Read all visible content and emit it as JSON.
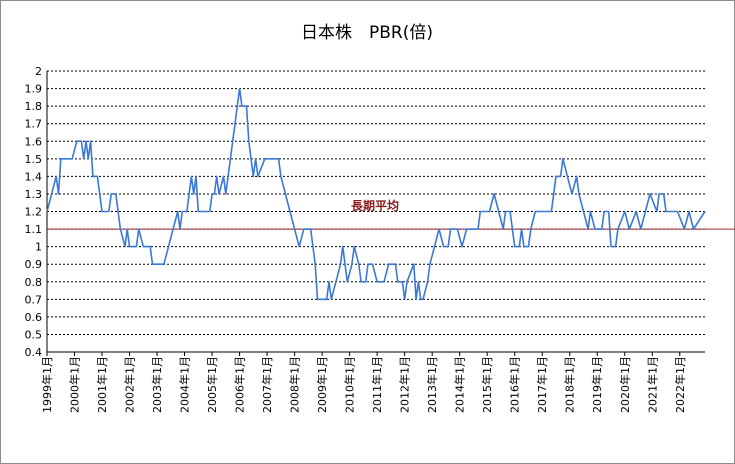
{
  "chart_data": {
    "type": "line",
    "title": "日本株　PBR(倍)",
    "ylim": [
      0.4,
      2.0
    ],
    "yticks": [
      "2",
      "1.9",
      "1.8",
      "1.7",
      "1.6",
      "1.5",
      "1.4",
      "1.3",
      "1.2",
      "1.1",
      "1",
      "0.9",
      "0.8",
      "0.7",
      "0.6",
      "0.5",
      "0.4"
    ],
    "ytick_values": [
      2.0,
      1.9,
      1.8,
      1.7,
      1.6,
      1.5,
      1.4,
      1.3,
      1.2,
      1.1,
      1.0,
      0.9,
      0.8,
      0.7,
      0.6,
      0.5,
      0.4
    ],
    "xticks": [
      "1999年1月",
      "2000年1月",
      "2001年1月",
      "2002年1月",
      "2003年1月",
      "2004年1月",
      "2005年1月",
      "2006年1月",
      "2007年1月",
      "2008年1月",
      "2009年1月",
      "2010年1月",
      "2011年1月",
      "2012年1月",
      "2013年1月",
      "2014年1月",
      "2015年1月",
      "2016年1月",
      "2017年1月",
      "2018年1月",
      "2019年1月",
      "2020年1月",
      "2021年1月",
      "2022年1月"
    ],
    "grid": true,
    "x_end": "2022-12",
    "reference_line": {
      "label": "長期平均",
      "value": 1.1,
      "color": "#a52a2a"
    },
    "series": [
      {
        "color": "#3a78d8",
        "points": [
          [
            "1999-01",
            1.2
          ],
          [
            "1999-03",
            1.3
          ],
          [
            "1999-05",
            1.4
          ],
          [
            "1999-06",
            1.3
          ],
          [
            "1999-07",
            1.5
          ],
          [
            "1999-09",
            1.5
          ],
          [
            "1999-12",
            1.5
          ],
          [
            "2000-02",
            1.6
          ],
          [
            "2000-04",
            1.6
          ],
          [
            "2000-05",
            1.5
          ],
          [
            "2000-06",
            1.6
          ],
          [
            "2000-07",
            1.5
          ],
          [
            "2000-08",
            1.6
          ],
          [
            "2000-09",
            1.4
          ],
          [
            "2000-11",
            1.4
          ],
          [
            "2001-01",
            1.2
          ],
          [
            "2001-04",
            1.2
          ],
          [
            "2001-05",
            1.3
          ],
          [
            "2001-07",
            1.3
          ],
          [
            "2001-09",
            1.1
          ],
          [
            "2001-11",
            1.0
          ],
          [
            "2001-12",
            1.1
          ],
          [
            "2002-01",
            1.0
          ],
          [
            "2002-04",
            1.0
          ],
          [
            "2002-05",
            1.1
          ],
          [
            "2002-07",
            1.0
          ],
          [
            "2002-10",
            1.0
          ],
          [
            "2002-11",
            0.9
          ],
          [
            "2003-04",
            0.9
          ],
          [
            "2003-06",
            1.0
          ],
          [
            "2003-08",
            1.1
          ],
          [
            "2003-10",
            1.2
          ],
          [
            "2003-11",
            1.1
          ],
          [
            "2003-12",
            1.2
          ],
          [
            "2004-02",
            1.2
          ],
          [
            "2004-04",
            1.4
          ],
          [
            "2004-05",
            1.3
          ],
          [
            "2004-06",
            1.4
          ],
          [
            "2004-07",
            1.2
          ],
          [
            "2004-12",
            1.2
          ],
          [
            "2005-01",
            1.3
          ],
          [
            "2005-02",
            1.3
          ],
          [
            "2005-03",
            1.4
          ],
          [
            "2005-04",
            1.3
          ],
          [
            "2005-06",
            1.4
          ],
          [
            "2005-07",
            1.3
          ],
          [
            "2005-08",
            1.4
          ],
          [
            "2005-10",
            1.6
          ],
          [
            "2005-12",
            1.8
          ],
          [
            "2006-01",
            1.9
          ],
          [
            "2006-02",
            1.8
          ],
          [
            "2006-04",
            1.8
          ],
          [
            "2006-05",
            1.6
          ],
          [
            "2006-07",
            1.4
          ],
          [
            "2006-08",
            1.5
          ],
          [
            "2006-09",
            1.4
          ],
          [
            "2006-12",
            1.5
          ],
          [
            "2007-06",
            1.5
          ],
          [
            "2007-07",
            1.4
          ],
          [
            "2007-09",
            1.3
          ],
          [
            "2007-11",
            1.2
          ],
          [
            "2008-01",
            1.1
          ],
          [
            "2008-03",
            1.0
          ],
          [
            "2008-05",
            1.1
          ],
          [
            "2008-08",
            1.1
          ],
          [
            "2008-10",
            0.9
          ],
          [
            "2008-11",
            0.7
          ],
          [
            "2009-03",
            0.7
          ],
          [
            "2009-04",
            0.8
          ],
          [
            "2009-05",
            0.7
          ],
          [
            "2009-07",
            0.8
          ],
          [
            "2009-09",
            0.9
          ],
          [
            "2009-10",
            1.0
          ],
          [
            "2009-11",
            0.9
          ],
          [
            "2009-12",
            0.8
          ],
          [
            "2010-02",
            0.9
          ],
          [
            "2010-03",
            1.0
          ],
          [
            "2010-05",
            0.9
          ],
          [
            "2010-06",
            0.8
          ],
          [
            "2010-08",
            0.8
          ],
          [
            "2010-09",
            0.9
          ],
          [
            "2010-11",
            0.9
          ],
          [
            "2011-01",
            0.8
          ],
          [
            "2011-04",
            0.8
          ],
          [
            "2011-06",
            0.9
          ],
          [
            "2011-09",
            0.9
          ],
          [
            "2011-10",
            0.8
          ],
          [
            "2011-12",
            0.8
          ],
          [
            "2012-01",
            0.7
          ],
          [
            "2012-02",
            0.8
          ],
          [
            "2012-05",
            0.9
          ],
          [
            "2012-06",
            0.7
          ],
          [
            "2012-07",
            0.8
          ],
          [
            "2012-08",
            0.7
          ],
          [
            "2012-09",
            0.7
          ],
          [
            "2012-11",
            0.8
          ],
          [
            "2012-12",
            0.9
          ],
          [
            "2013-02",
            1.0
          ],
          [
            "2013-04",
            1.1
          ],
          [
            "2013-06",
            1.0
          ],
          [
            "2013-08",
            1.0
          ],
          [
            "2013-09",
            1.1
          ],
          [
            "2013-12",
            1.1
          ],
          [
            "2014-02",
            1.0
          ],
          [
            "2014-04",
            1.1
          ],
          [
            "2014-09",
            1.1
          ],
          [
            "2014-10",
            1.2
          ],
          [
            "2014-12",
            1.2
          ],
          [
            "2015-02",
            1.2
          ],
          [
            "2015-04",
            1.3
          ],
          [
            "2015-06",
            1.2
          ],
          [
            "2015-08",
            1.1
          ],
          [
            "2015-09",
            1.2
          ],
          [
            "2015-11",
            1.2
          ],
          [
            "2015-12",
            1.1
          ],
          [
            "2016-01",
            1.0
          ],
          [
            "2016-03",
            1.0
          ],
          [
            "2016-04",
            1.1
          ],
          [
            "2016-05",
            1.0
          ],
          [
            "2016-07",
            1.0
          ],
          [
            "2016-08",
            1.1
          ],
          [
            "2016-10",
            1.2
          ],
          [
            "2016-12",
            1.2
          ],
          [
            "2017-01",
            1.2
          ],
          [
            "2017-05",
            1.2
          ],
          [
            "2017-07",
            1.4
          ],
          [
            "2017-09",
            1.4
          ],
          [
            "2017-10",
            1.5
          ],
          [
            "2017-12",
            1.4
          ],
          [
            "2018-02",
            1.3
          ],
          [
            "2018-04",
            1.4
          ],
          [
            "2018-05",
            1.3
          ],
          [
            "2018-07",
            1.2
          ],
          [
            "2018-09",
            1.1
          ],
          [
            "2018-10",
            1.2
          ],
          [
            "2018-12",
            1.1
          ],
          [
            "2019-03",
            1.1
          ],
          [
            "2019-04",
            1.2
          ],
          [
            "2019-06",
            1.2
          ],
          [
            "2019-07",
            1.0
          ],
          [
            "2019-09",
            1.0
          ],
          [
            "2019-10",
            1.1
          ],
          [
            "2020-01",
            1.2
          ],
          [
            "2020-03",
            1.1
          ],
          [
            "2020-06",
            1.2
          ],
          [
            "2020-08",
            1.1
          ],
          [
            "2020-12",
            1.3
          ],
          [
            "2021-03",
            1.2
          ],
          [
            "2021-04",
            1.3
          ],
          [
            "2021-06",
            1.3
          ],
          [
            "2021-07",
            1.2
          ],
          [
            "2021-12",
            1.2
          ],
          [
            "2022-03",
            1.1
          ],
          [
            "2022-05",
            1.2
          ],
          [
            "2022-07",
            1.1
          ],
          [
            "2022-12",
            1.2
          ]
        ]
      }
    ]
  }
}
